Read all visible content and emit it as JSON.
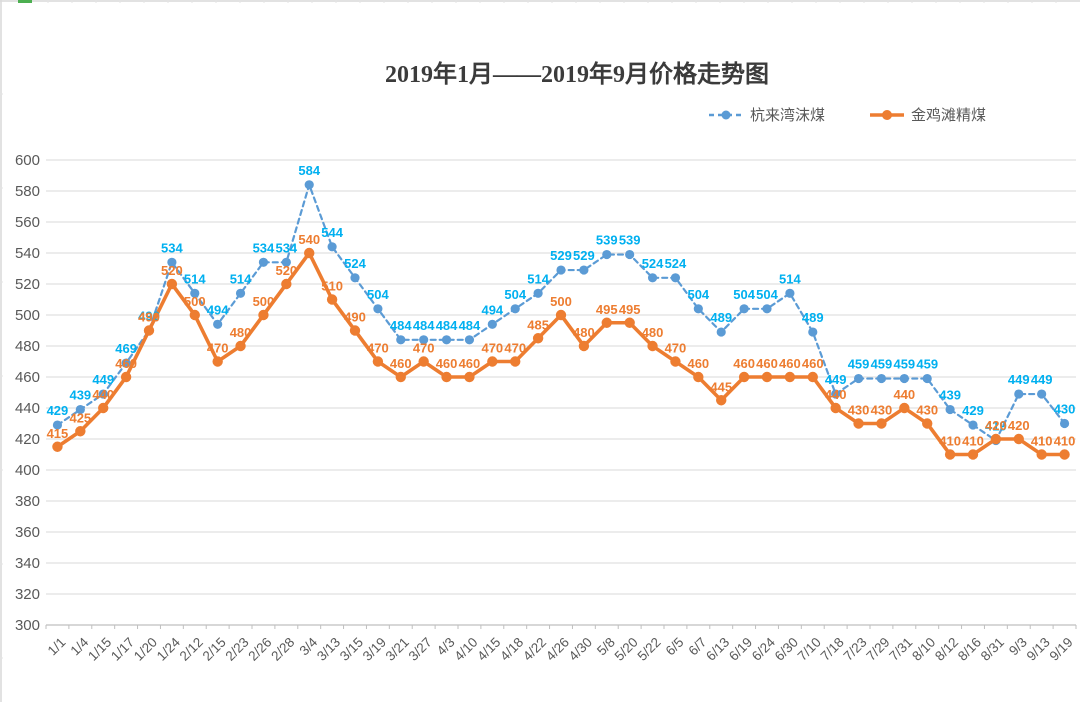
{
  "title": "2019年1月——2019年9月价格走势图",
  "legend": {
    "position": "top-right",
    "items": [
      {
        "label": "杭来湾沫煤",
        "style": "dashed",
        "color": "#5b9bd5"
      },
      {
        "label": "金鸡滩精煤",
        "style": "solid",
        "color": "#ed7d31"
      }
    ]
  },
  "colors": {
    "blue_line": "#5b9bd5",
    "blue_label": "#00b0f0",
    "orange_line": "#ed7d31",
    "orange_label": "#ed7d31",
    "gridline": "#d9d9d9",
    "axis_line": "#bfbfbf",
    "axis_text": "#595959",
    "title_text": "#3b3b3b",
    "edge_ruler": "#d9d9d9",
    "edge_green_tick": "#4caf50"
  },
  "chart_data": {
    "type": "line",
    "title": "2019年1月——2019年9月价格走势图",
    "xlabel": "",
    "ylabel": "",
    "grid": true,
    "legend_position": "top-right",
    "ylim": [
      300,
      600
    ],
    "y_ticks": [
      300,
      320,
      340,
      360,
      380,
      400,
      420,
      440,
      460,
      480,
      500,
      520,
      540,
      560,
      580,
      600
    ],
    "categories": [
      "1/1",
      "1/4",
      "1/15",
      "1/17",
      "1/20",
      "1/24",
      "2/12",
      "2/15",
      "2/23",
      "2/26",
      "2/28",
      "3/4",
      "3/13",
      "3/15",
      "3/19",
      "3/21",
      "3/27",
      "4/3",
      "4/10",
      "4/15",
      "4/18",
      "4/22",
      "4/26",
      "4/30",
      "5/8",
      "5/20",
      "5/22",
      "6/5",
      "6/7",
      "6/13",
      "6/19",
      "6/24",
      "6/30",
      "7/10",
      "7/18",
      "7/23",
      "7/29",
      "7/31",
      "8/10",
      "8/12",
      "8/16",
      "8/31",
      "9/3",
      "9/13",
      "9/19"
    ],
    "series": [
      {
        "name": "杭来湾沫煤",
        "style": "dashed",
        "color": "#5b9bd5",
        "label_color": "#00b0f0",
        "values": [
          429,
          439,
          449,
          469,
          490,
          534,
          514,
          494,
          514,
          534,
          534,
          584,
          544,
          524,
          504,
          484,
          484,
          484,
          484,
          494,
          504,
          514,
          529,
          529,
          539,
          539,
          524,
          524,
          504,
          489,
          504,
          504,
          514,
          489,
          449,
          459,
          459,
          459,
          459,
          439,
          429,
          419,
          449,
          449,
          430
        ]
      },
      {
        "name": "金鸡滩精煤",
        "style": "solid",
        "color": "#ed7d31",
        "label_color": "#ed7d31",
        "values": [
          415,
          425,
          440,
          460,
          490,
          520,
          500,
          470,
          480,
          500,
          520,
          540,
          510,
          490,
          470,
          460,
          470,
          460,
          460,
          470,
          470,
          485,
          500,
          480,
          495,
          495,
          480,
          470,
          460,
          445,
          460,
          460,
          460,
          460,
          440,
          430,
          430,
          440,
          430,
          410,
          410,
          420,
          420,
          410,
          410
        ]
      }
    ]
  }
}
